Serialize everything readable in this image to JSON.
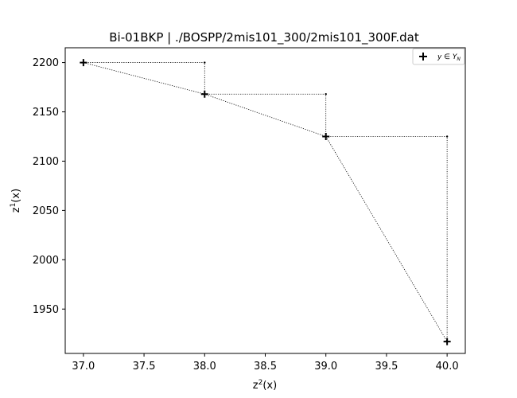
{
  "chart_data": {
    "type": "scatter",
    "title": "Bi-01BKP | ./BOSPP/2mis101_300/2mis101_300F.dat",
    "xlabel": "z²(x)",
    "ylabel": "z¹(x)",
    "xlim": [
      36.85,
      40.15
    ],
    "ylim": [
      1905,
      2215
    ],
    "xticks": [
      37.0,
      37.5,
      38.0,
      38.5,
      39.0,
      39.5,
      40.0
    ],
    "xtick_labels": [
      "37.0",
      "37.5",
      "38.0",
      "38.5",
      "39.0",
      "39.5",
      "40.0"
    ],
    "yticks": [
      1950,
      2000,
      2050,
      2100,
      2150,
      2200
    ],
    "ytick_labels": [
      "1950",
      "2000",
      "2050",
      "2100",
      "2150",
      "2200"
    ],
    "grid": false,
    "legend": {
      "position": "top-right",
      "entries": [
        "y ∈ Y_N"
      ]
    },
    "series": [
      {
        "name": "y ∈ Y_N",
        "marker": "plus",
        "x": [
          37.0,
          38.0,
          39.0,
          40.0
        ],
        "y": [
          2200,
          2168,
          2125,
          1917
        ]
      }
    ],
    "connector": {
      "style": "dotted",
      "x": [
        37.0,
        38.0,
        39.0,
        40.0
      ],
      "y": [
        2200,
        2168,
        2125,
        1917
      ]
    },
    "local_ideal_points": {
      "marker": "dot",
      "x": [
        38.0,
        39.0,
        40.0
      ],
      "y": [
        2200,
        2168,
        2125
      ]
    }
  }
}
